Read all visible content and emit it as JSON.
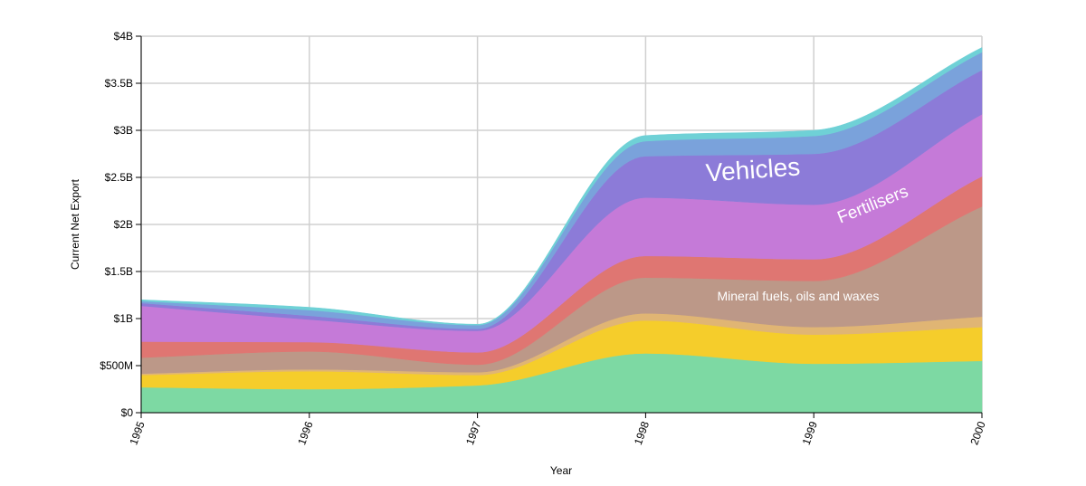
{
  "chart_data": {
    "type": "area",
    "stacked": true,
    "curve": "smooth",
    "x": [
      1995,
      1996,
      1997,
      1998,
      1999,
      2000
    ],
    "xlabel": "Year",
    "ylabel": "Current Net Export",
    "ylim": [
      0,
      4000000000
    ],
    "y_ticks": [
      {
        "value": 0,
        "label": "$0"
      },
      {
        "value": 500000000,
        "label": "$500M"
      },
      {
        "value": 1000000000,
        "label": "$1B"
      },
      {
        "value": 1500000000,
        "label": "$1.5B"
      },
      {
        "value": 2000000000,
        "label": "$2B"
      },
      {
        "value": 2500000000,
        "label": "$2.5B"
      },
      {
        "value": 3000000000,
        "label": "$3B"
      },
      {
        "value": 3500000000,
        "label": "$3.5B"
      },
      {
        "value": 4000000000,
        "label": "$4B"
      }
    ],
    "x_ticks": [
      {
        "value": 1995,
        "label": "1995"
      },
      {
        "value": 1996,
        "label": "1996"
      },
      {
        "value": 1997,
        "label": "1997"
      },
      {
        "value": 1998,
        "label": "1998"
      },
      {
        "value": 1999,
        "label": "1999"
      },
      {
        "value": 2000,
        "label": "2000"
      }
    ],
    "grid": true,
    "series": [
      {
        "values": [
          270000000,
          250000000,
          290000000,
          630000000,
          520000000,
          550000000
        ],
        "color": "#7dd9a3"
      },
      {
        "values": [
          130000000,
          190000000,
          110000000,
          350000000,
          310000000,
          360000000
        ],
        "color": "#f5cd2b"
      },
      {
        "values": [
          15000000,
          20000000,
          30000000,
          75000000,
          80000000,
          110000000
        ],
        "color": "#e0b574"
      },
      {
        "name": "Mineral fuels, oils and waxes",
        "values": [
          170000000,
          190000000,
          80000000,
          380000000,
          490000000,
          1170000000
        ],
        "color": "#bc9888"
      },
      {
        "values": [
          170000000,
          100000000,
          130000000,
          230000000,
          230000000,
          320000000
        ],
        "color": "#df7672"
      },
      {
        "name": "Fertilisers",
        "values": [
          380000000,
          240000000,
          230000000,
          620000000,
          580000000,
          660000000
        ],
        "color": "#c57ad8"
      },
      {
        "name": "Vehicles",
        "values": [
          30000000,
          40000000,
          20000000,
          440000000,
          540000000,
          470000000
        ],
        "color": "#8c7bd8"
      },
      {
        "values": [
          20000000,
          60000000,
          40000000,
          160000000,
          190000000,
          190000000
        ],
        "color": "#7aa2db"
      },
      {
        "values": [
          15000000,
          30000000,
          10000000,
          60000000,
          60000000,
          50000000
        ],
        "color": "#6fd1d6"
      }
    ],
    "labels": {
      "vehicles": "Vehicles",
      "fertilisers": "Fertilisers",
      "mineral": "Mineral fuels, oils and waxes"
    }
  }
}
